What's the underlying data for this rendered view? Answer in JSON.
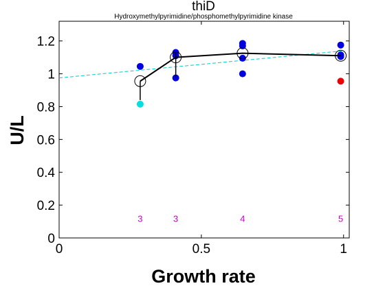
{
  "chart_data": {
    "type": "scatter",
    "title": "thiD",
    "subtitle": "Hydroxymethylpyrimidine/phosphomethylpyrimidine kinase",
    "xlabel": "Growth rate",
    "ylabel": "U/L",
    "xlim": [
      0,
      1.02
    ],
    "ylim": [
      0,
      1.32
    ],
    "xticks": [
      0,
      0.5,
      1
    ],
    "xtick_labels": [
      "0",
      "0.5",
      "1"
    ],
    "yticks": [
      0,
      0.2,
      0.4,
      0.6,
      0.8,
      1.0,
      1.2
    ],
    "ytick_labels": [
      "0",
      "0.2",
      "0.4",
      "0.6",
      "0.8",
      "1",
      "1.2"
    ],
    "grid": false,
    "series": [
      {
        "marker": "dot",
        "color": "#0000e0",
        "points": [
          {
            "x": 0.285,
            "y": 1.045
          },
          {
            "x": 0.41,
            "y": 1.13
          },
          {
            "x": 0.41,
            "y": 1.11
          },
          {
            "x": 0.41,
            "y": 0.975
          },
          {
            "x": 0.645,
            "y": 1.185
          },
          {
            "x": 0.645,
            "y": 1.17
          },
          {
            "x": 0.645,
            "y": 1.095
          },
          {
            "x": 0.645,
            "y": 1.0
          },
          {
            "x": 0.99,
            "y": 1.175
          },
          {
            "x": 0.99,
            "y": 1.115
          },
          {
            "x": 0.99,
            "y": 1.105
          }
        ]
      },
      {
        "marker": "dot",
        "color": "#00e0e0",
        "points": [
          {
            "x": 0.285,
            "y": 0.815
          }
        ]
      },
      {
        "marker": "dot",
        "color": "#ee0000",
        "points": [
          {
            "x": 0.99,
            "y": 0.955
          }
        ]
      },
      {
        "marker": "open-circle-line",
        "color": "#000000",
        "points": [
          {
            "x": 0.285,
            "y": 0.955
          },
          {
            "x": 0.41,
            "y": 1.1
          },
          {
            "x": 0.645,
            "y": 1.125
          },
          {
            "x": 0.99,
            "y": 1.11
          }
        ],
        "error_bars": [
          {
            "x": 0.285,
            "low": 0.84,
            "high": 0.955
          },
          {
            "x": 0.41,
            "low": 0.98,
            "high": 1.13
          }
        ]
      },
      {
        "marker": "dashed-line",
        "color": "#00cccc",
        "points": [
          {
            "x": 0,
            "y": 0.975
          },
          {
            "x": 1.0,
            "y": 1.14
          }
        ]
      }
    ],
    "annotations": [
      {
        "x": 0.285,
        "text": "3"
      },
      {
        "x": 0.41,
        "text": "3"
      },
      {
        "x": 0.645,
        "text": "4"
      },
      {
        "x": 0.99,
        "text": "5"
      }
    ],
    "annotation_y": 0.12,
    "annotation_color": "#cc00cc"
  }
}
